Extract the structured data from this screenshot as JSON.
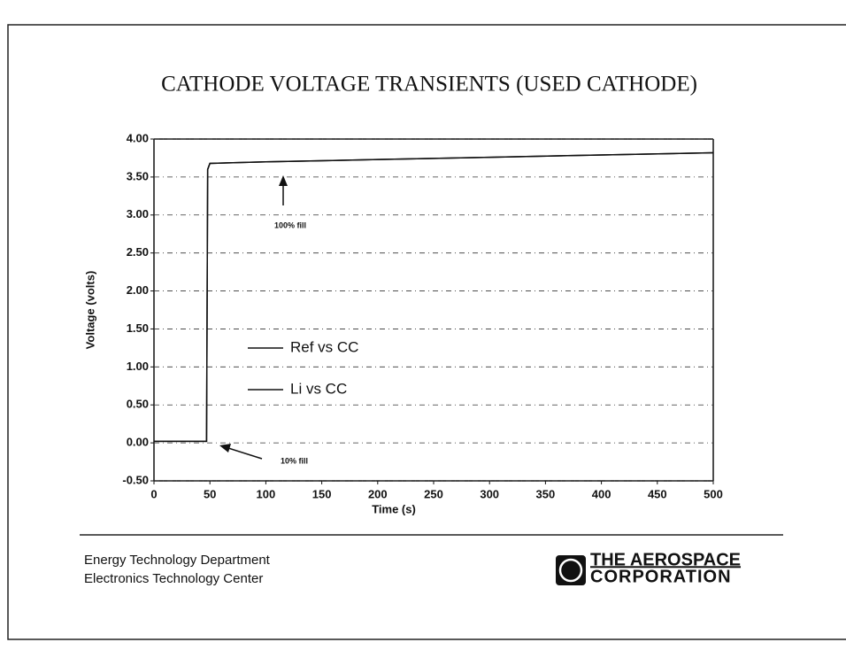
{
  "chart_data": {
    "type": "line",
    "title": "CATHODE VOLTAGE TRANSIENTS (USED CATHODE)",
    "x_label": "Time  (s)",
    "y_label": "Voltage (volts)",
    "x": [
      0,
      47,
      48,
      50,
      100,
      200,
      300,
      400,
      500
    ],
    "series": [
      {
        "name": "Ref vs CC",
        "color": "#111111",
        "values": [
          0.02,
          0.02,
          3.6,
          3.68,
          3.7,
          3.73,
          3.76,
          3.79,
          3.82
        ]
      },
      {
        "name": "Li vs CC",
        "color": "#111111",
        "values": [
          0.02,
          0.02,
          3.6,
          3.68,
          3.7,
          3.73,
          3.76,
          3.79,
          3.82
        ]
      }
    ],
    "xlim": [
      0,
      500
    ],
    "xticks": [
      0,
      50,
      100,
      150,
      200,
      250,
      300,
      350,
      400,
      450,
      500
    ],
    "ylim": [
      -0.5,
      4.0
    ],
    "yticks": [
      {
        "value": -0.5,
        "label": "-0.50"
      },
      {
        "value": 0,
        "label": "0.00"
      },
      {
        "value": 0.5,
        "label": "0.50"
      },
      {
        "value": 1,
        "label": "1.00"
      },
      {
        "value": 1.5,
        "label": "1.50"
      },
      {
        "value": 2,
        "label": "2.00"
      },
      {
        "value": 2.5,
        "label": "2.50"
      },
      {
        "value": 3,
        "label": "3.00"
      },
      {
        "value": 3.5,
        "label": "3.50"
      },
      {
        "value": 4,
        "label": "4.00"
      }
    ],
    "grid": true,
    "annotations": [
      "100% fill",
      "10% fill"
    ]
  },
  "footer": {
    "department": "Energy Technology Department",
    "center": "Electronics Technology Center",
    "logo_line1": "THE AEROSPACE",
    "logo_line2": "CORPORATION"
  }
}
